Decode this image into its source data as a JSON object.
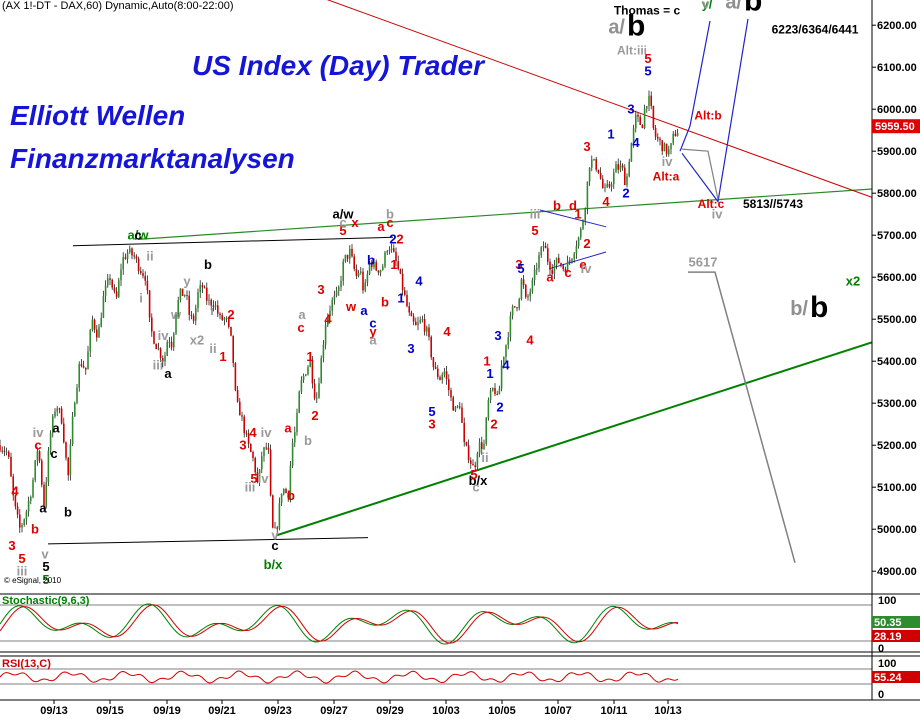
{
  "chart_data": {
    "type": "candlestick",
    "header": "(AX 1!-DT - DAX,60) Dynamic,Auto(8:00-22:00)",
    "titles": [
      "US Index (Day) Trader",
      "Elliott Wellen",
      "Finanzmarktanalysen"
    ],
    "watermark": "© eSignal, 2010",
    "ylim": [
      4860,
      6260
    ],
    "y_ticks": [
      "6200.00",
      "6100.00",
      "6000.00",
      "5900.00",
      "5800.00",
      "5700.00",
      "5600.00",
      "5500.00",
      "5400.00",
      "5300.00",
      "5200.00",
      "5100.00",
      "5000.00",
      "4900.00"
    ],
    "x_ticks": [
      "09/13",
      "09/15",
      "09/19",
      "09/21",
      "09/23",
      "09/27",
      "09/29",
      "10/03",
      "10/05",
      "10/07",
      "10/11",
      "10/13"
    ],
    "last_price": "5959.50",
    "price_path": [
      [
        0,
        5200
      ],
      [
        8,
        5180
      ],
      [
        14,
        5060
      ],
      [
        20,
        5000
      ],
      [
        26,
        5040
      ],
      [
        32,
        5100
      ],
      [
        38,
        5200
      ],
      [
        44,
        5060
      ],
      [
        50,
        5220
      ],
      [
        56,
        5300
      ],
      [
        62,
        5260
      ],
      [
        68,
        5120
      ],
      [
        74,
        5300
      ],
      [
        80,
        5400
      ],
      [
        86,
        5380
      ],
      [
        92,
        5500
      ],
      [
        98,
        5460
      ],
      [
        104,
        5560
      ],
      [
        110,
        5600
      ],
      [
        116,
        5540
      ],
      [
        122,
        5640
      ],
      [
        128,
        5660
      ],
      [
        134,
        5650
      ],
      [
        140,
        5620
      ],
      [
        146,
        5600
      ],
      [
        150,
        5480
      ],
      [
        156,
        5440
      ],
      [
        160,
        5420
      ],
      [
        164,
        5400
      ],
      [
        168,
        5460
      ],
      [
        172,
        5440
      ],
      [
        176,
        5520
      ],
      [
        180,
        5560
      ],
      [
        186,
        5560
      ],
      [
        190,
        5500
      ],
      [
        194,
        5500
      ],
      [
        198,
        5560
      ],
      [
        202,
        5580
      ],
      [
        208,
        5540
      ],
      [
        214,
        5540
      ],
      [
        220,
        5500
      ],
      [
        226,
        5500
      ],
      [
        232,
        5440
      ],
      [
        236,
        5300
      ],
      [
        240,
        5280
      ],
      [
        244,
        5240
      ],
      [
        248,
        5200
      ],
      [
        254,
        5160
      ],
      [
        258,
        5100
      ],
      [
        262,
        5180
      ],
      [
        268,
        5200
      ],
      [
        272,
        5000
      ],
      [
        276,
        4990
      ],
      [
        282,
        5100
      ],
      [
        288,
        5080
      ],
      [
        292,
        5200
      ],
      [
        296,
        5240
      ],
      [
        300,
        5340
      ],
      [
        306,
        5380
      ],
      [
        310,
        5400
      ],
      [
        316,
        5300
      ],
      [
        320,
        5380
      ],
      [
        326,
        5500
      ],
      [
        332,
        5540
      ],
      [
        338,
        5560
      ],
      [
        344,
        5640
      ],
      [
        350,
        5660
      ],
      [
        356,
        5600
      ],
      [
        360,
        5620
      ],
      [
        364,
        5560
      ],
      [
        370,
        5640
      ],
      [
        376,
        5620
      ],
      [
        382,
        5620
      ],
      [
        388,
        5680
      ],
      [
        394,
        5650
      ],
      [
        398,
        5620
      ],
      [
        404,
        5560
      ],
      [
        410,
        5500
      ],
      [
        416,
        5480
      ],
      [
        422,
        5500
      ],
      [
        428,
        5460
      ],
      [
        434,
        5380
      ],
      [
        440,
        5360
      ],
      [
        444,
        5380
      ],
      [
        448,
        5340
      ],
      [
        452,
        5300
      ],
      [
        456,
        5280
      ],
      [
        460,
        5300
      ],
      [
        464,
        5200
      ],
      [
        468,
        5180
      ],
      [
        474,
        5140
      ],
      [
        478,
        5200
      ],
      [
        484,
        5200
      ],
      [
        488,
        5300
      ],
      [
        494,
        5340
      ],
      [
        498,
        5300
      ],
      [
        502,
        5400
      ],
      [
        506,
        5440
      ],
      [
        512,
        5520
      ],
      [
        518,
        5540
      ],
      [
        522,
        5600
      ],
      [
        526,
        5540
      ],
      [
        532,
        5580
      ],
      [
        538,
        5640
      ],
      [
        544,
        5680
      ],
      [
        548,
        5640
      ],
      [
        552,
        5620
      ],
      [
        558,
        5640
      ],
      [
        564,
        5620
      ],
      [
        570,
        5640
      ],
      [
        576,
        5680
      ],
      [
        580,
        5700
      ],
      [
        584,
        5750
      ],
      [
        590,
        5880
      ],
      [
        594,
        5870
      ],
      [
        598,
        5860
      ],
      [
        604,
        5800
      ],
      [
        610,
        5820
      ],
      [
        616,
        5860
      ],
      [
        622,
        5860
      ],
      [
        626,
        5820
      ],
      [
        630,
        5900
      ],
      [
        636,
        5980
      ],
      [
        642,
        5960
      ],
      [
        646,
        6020
      ],
      [
        650,
        6020
      ],
      [
        654,
        5940
      ],
      [
        660,
        5920
      ],
      [
        666,
        5900
      ],
      [
        670,
        5900
      ],
      [
        674,
        5940
      ],
      [
        678,
        5950
      ]
    ],
    "wave_labels": [
      {
        "t": "a/w",
        "v": 5690,
        "x": 138,
        "c": "#008000"
      },
      {
        "t": "a/w",
        "v": 5740,
        "x": 343,
        "c": "#000000"
      },
      {
        "t": "b/x",
        "v": 4905,
        "x": 273,
        "c": "#008000"
      },
      {
        "t": "b/x",
        "v": 5105,
        "x": 478,
        "c": "#000000"
      },
      {
        "t": "y/",
        "v": 6240,
        "x": 707,
        "c": "#008000"
      },
      {
        "t": "Thomas = c",
        "v": 6225,
        "x": 647,
        "c": "#000000"
      },
      {
        "t": "6223/6364/6441",
        "v": 6180,
        "x": 815,
        "c": "#000000"
      },
      {
        "t": "Alt:iii",
        "v": 6130,
        "x": 632,
        "c": "#9a9a9a"
      },
      {
        "t": "Alt:b",
        "v": 5975,
        "x": 708,
        "c": "#e00000"
      },
      {
        "t": "Alt:a",
        "v": 5830,
        "x": 666,
        "c": "#e00000"
      },
      {
        "t": "Alt:c",
        "v": 5765,
        "x": 711,
        "c": "#e00000"
      },
      {
        "t": "5813//5743",
        "v": 5765,
        "x": 773,
        "c": "#000000"
      },
      {
        "t": "5617",
        "v": 5625,
        "x": 703,
        "c": "#9a9a9a"
      },
      {
        "t": "x2",
        "v": 5580,
        "x": 853,
        "c": "#008000"
      },
      {
        "t": "i",
        "v": 5540,
        "x": 141,
        "c": "#9a9a9a"
      },
      {
        "t": "ii",
        "v": 5640,
        "x": 150,
        "c": "#9a9a9a"
      },
      {
        "t": "iii",
        "v": 5380,
        "x": 158,
        "c": "#9a9a9a"
      },
      {
        "t": "iv",
        "v": 5450,
        "x": 163,
        "c": "#9a9a9a"
      },
      {
        "t": "w",
        "v": 5500,
        "x": 176,
        "c": "#9a9a9a"
      },
      {
        "t": "x2",
        "v": 5440,
        "x": 197,
        "c": "#9a9a9a"
      },
      {
        "t": "y",
        "v": 5580,
        "x": 187,
        "c": "#9a9a9a"
      },
      {
        "t": "b",
        "v": 5620,
        "x": 208,
        "c": "#000000"
      },
      {
        "t": "1",
        "v": 5400,
        "x": 223,
        "c": "#e00000"
      },
      {
        "t": "2",
        "v": 5500,
        "x": 231,
        "c": "#e00000"
      },
      {
        "t": "a",
        "v": 5360,
        "x": 168,
        "c": "#000000"
      },
      {
        "t": "c",
        "v": 5690,
        "x": 138,
        "c": "#000000"
      },
      {
        "t": "4",
        "v": 5220,
        "x": 253,
        "c": "#e00000"
      },
      {
        "t": "iv",
        "v": 5220,
        "x": 266,
        "c": "#9a9a9a"
      },
      {
        "t": "3",
        "v": 5190,
        "x": 243,
        "c": "#e00000"
      },
      {
        "t": "5",
        "v": 5110,
        "x": 254,
        "c": "#e00000"
      },
      {
        "t": "iii",
        "v": 5090,
        "x": 250,
        "c": "#9a9a9a"
      },
      {
        "t": "b",
        "v": 5070,
        "x": 291,
        "c": "#e00000"
      },
      {
        "t": "a",
        "v": 5230,
        "x": 288,
        "c": "#e00000"
      },
      {
        "t": "2",
        "v": 5260,
        "x": 315,
        "c": "#e00000"
      },
      {
        "t": "1",
        "v": 5400,
        "x": 310,
        "c": "#e00000"
      },
      {
        "t": "c",
        "v": 5470,
        "x": 301,
        "c": "#e00000"
      },
      {
        "t": "a",
        "v": 5500,
        "x": 302,
        "c": "#9a9a9a"
      },
      {
        "t": "b",
        "v": 5200,
        "x": 308,
        "c": "#9a9a9a"
      },
      {
        "t": "3",
        "v": 5560,
        "x": 321,
        "c": "#e00000"
      },
      {
        "t": "4",
        "v": 5490,
        "x": 328,
        "c": "#e00000"
      },
      {
        "t": "5",
        "v": 5700,
        "x": 343,
        "c": "#e00000"
      },
      {
        "t": "x",
        "v": 5720,
        "x": 355,
        "c": "#e00000"
      },
      {
        "t": "c",
        "v": 5720,
        "x": 343,
        "c": "#9a9a9a"
      },
      {
        "t": "w",
        "v": 5520,
        "x": 351,
        "c": "#e00000"
      },
      {
        "t": "a",
        "v": 5510,
        "x": 364,
        "c": "#0000cc"
      },
      {
        "t": "c",
        "v": 5480,
        "x": 373,
        "c": "#0000cc"
      },
      {
        "t": "y",
        "v": 5460,
        "x": 373,
        "c": "#e00000"
      },
      {
        "t": "a",
        "v": 5440,
        "x": 373,
        "c": "#9a9a9a"
      },
      {
        "t": "b",
        "v": 5630,
        "x": 371,
        "c": "#0000cc"
      },
      {
        "t": "a",
        "v": 5710,
        "x": 381,
        "c": "#e00000"
      },
      {
        "t": "b",
        "v": 5740,
        "x": 390,
        "c": "#9a9a9a"
      },
      {
        "t": "c",
        "v": 5720,
        "x": 390,
        "c": "#e00000"
      },
      {
        "t": "2",
        "v": 5680,
        "x": 400,
        "c": "#e00000"
      },
      {
        "t": "1",
        "v": 5620,
        "x": 394,
        "c": "#e00000"
      },
      {
        "t": "b",
        "v": 5530,
        "x": 385,
        "c": "#e00000"
      },
      {
        "t": "1",
        "v": 5540,
        "x": 401,
        "c": "#0000cc"
      },
      {
        "t": "2",
        "v": 5680,
        "x": 393,
        "c": "#0000cc"
      },
      {
        "t": "4",
        "v": 5580,
        "x": 419,
        "c": "#0000cc"
      },
      {
        "t": "3",
        "v": 5420,
        "x": 411,
        "c": "#0000cc"
      },
      {
        "t": "4",
        "v": 5460,
        "x": 447,
        "c": "#e00000"
      },
      {
        "t": "5",
        "v": 5270,
        "x": 432,
        "c": "#0000cc"
      },
      {
        "t": "3",
        "v": 5240,
        "x": 432,
        "c": "#e00000"
      },
      {
        "t": "ii",
        "v": 5160,
        "x": 485,
        "c": "#9a9a9a"
      },
      {
        "t": "5",
        "v": 5120,
        "x": 474,
        "c": "#e00000"
      },
      {
        "t": "c",
        "v": 5090,
        "x": 476,
        "c": "#9a9a9a"
      },
      {
        "t": "2",
        "v": 5240,
        "x": 494,
        "c": "#e00000"
      },
      {
        "t": "1",
        "v": 5390,
        "x": 487,
        "c": "#e00000"
      },
      {
        "t": "2",
        "v": 5280,
        "x": 500,
        "c": "#0000cc"
      },
      {
        "t": "3",
        "v": 5450,
        "x": 498,
        "c": "#0000cc"
      },
      {
        "t": "4",
        "v": 5380,
        "x": 506,
        "c": "#0000cc"
      },
      {
        "t": "1",
        "v": 5360,
        "x": 490,
        "c": "#0000cc"
      },
      {
        "t": "3",
        "v": 5620,
        "x": 519,
        "c": "#e00000"
      },
      {
        "t": "5",
        "v": 5610,
        "x": 521,
        "c": "#0000cc"
      },
      {
        "t": "4",
        "v": 5440,
        "x": 530,
        "c": "#e00000"
      },
      {
        "t": "iii",
        "v": 5740,
        "x": 535,
        "c": "#9a9a9a"
      },
      {
        "t": "5",
        "v": 5700,
        "x": 535,
        "c": "#e00000"
      },
      {
        "t": "b",
        "v": 5760,
        "x": 557,
        "c": "#e00000"
      },
      {
        "t": "a",
        "v": 5590,
        "x": 550,
        "c": "#e00000"
      },
      {
        "t": "c",
        "v": 5600,
        "x": 568,
        "c": "#e00000"
      },
      {
        "t": "e",
        "v": 5620,
        "x": 583,
        "c": "#e00000"
      },
      {
        "t": "d",
        "v": 5760,
        "x": 573,
        "c": "#e00000"
      },
      {
        "t": "1",
        "v": 5740,
        "x": 578,
        "c": "#e00000"
      },
      {
        "t": "2",
        "v": 5670,
        "x": 587,
        "c": "#e00000"
      },
      {
        "t": "iv",
        "v": 5610,
        "x": 586,
        "c": "#9a9a9a"
      },
      {
        "t": "3",
        "v": 5900,
        "x": 587,
        "c": "#e00000"
      },
      {
        "t": "4",
        "v": 5770,
        "x": 606,
        "c": "#e00000"
      },
      {
        "t": "1",
        "v": 5930,
        "x": 611,
        "c": "#0000cc"
      },
      {
        "t": "2",
        "v": 5790,
        "x": 626,
        "c": "#0000cc"
      },
      {
        "t": "3",
        "v": 5990,
        "x": 631,
        "c": "#0000cc"
      },
      {
        "t": "4",
        "v": 5910,
        "x": 636,
        "c": "#0000cc"
      },
      {
        "t": "5",
        "v": 6080,
        "x": 648,
        "c": "#0000cc"
      },
      {
        "t": "5",
        "v": 6110,
        "x": 648,
        "c": "#e00000"
      },
      {
        "t": "iv",
        "v": 5865,
        "x": 667,
        "c": "#9a9a9a"
      },
      {
        "t": "v",
        "v": 6240,
        "x": 706,
        "c": "#9a9a9a"
      },
      {
        "t": "iv",
        "v": 5740,
        "x": 717,
        "c": "#9a9a9a"
      },
      {
        "t": "4",
        "v": 5080,
        "x": 15,
        "c": "#e00000"
      },
      {
        "t": "3",
        "v": 4950,
        "x": 12,
        "c": "#e00000"
      },
      {
        "t": "5",
        "v": 4920,
        "x": 22,
        "c": "#e00000"
      },
      {
        "t": "iii",
        "v": 4890,
        "x": 22,
        "c": "#9a9a9a"
      },
      {
        "t": "b",
        "v": 4990,
        "x": 35,
        "c": "#e00000"
      },
      {
        "t": "c",
        "v": 5190,
        "x": 38,
        "c": "#e00000"
      },
      {
        "t": "iv",
        "v": 5220,
        "x": 38,
        "c": "#9a9a9a"
      },
      {
        "t": "a",
        "v": 5230,
        "x": 56,
        "c": "#000000"
      },
      {
        "t": "c",
        "v": 5170,
        "x": 54,
        "c": "#000000"
      },
      {
        "t": "b",
        "v": 5030,
        "x": 68,
        "c": "#000000"
      },
      {
        "t": "a",
        "v": 5040,
        "x": 43,
        "c": "#000000"
      },
      {
        "t": "v",
        "v": 4930,
        "x": 45,
        "c": "#9a9a9a"
      },
      {
        "t": "5",
        "v": 4900,
        "x": 46,
        "c": "#000000"
      },
      {
        "t": "5",
        "v": 4870,
        "x": 46,
        "c": "#008000"
      },
      {
        "t": "v",
        "v": 4975,
        "x": 275,
        "c": "#9a9a9a"
      },
      {
        "t": "c",
        "v": 4950,
        "x": 275,
        "c": "#000000"
      },
      {
        "t": "ii",
        "v": 5420,
        "x": 213,
        "c": "#9a9a9a"
      },
      {
        "t": "iv",
        "v": 5110,
        "x": 263,
        "c": "#9a9a9a"
      },
      {
        "t": "i",
        "v": 5510,
        "x": 212,
        "c": "#9a9a9a"
      }
    ],
    "big_labels": [
      {
        "grey": "a/",
        "black": "b",
        "v": 6180,
        "x": 625,
        "c": "#000000"
      },
      {
        "grey": "a/",
        "black": "b",
        "v": 6240,
        "x": 742,
        "c": "#000000"
      },
      {
        "grey": "b/",
        "black": "b",
        "v": 5510,
        "x": 808,
        "c": "#000000"
      }
    ],
    "indicators": [
      {
        "name": "Stochastic(9,6,3)",
        "last": "50.35",
        "last2": "28.19",
        "ticks": [
          "100",
          "0"
        ],
        "color": "#008000"
      },
      {
        "name": "RSI(13,C)",
        "last": "55.24",
        "ticks": [
          "100",
          "50",
          "0"
        ],
        "color": "#e00000"
      }
    ]
  }
}
